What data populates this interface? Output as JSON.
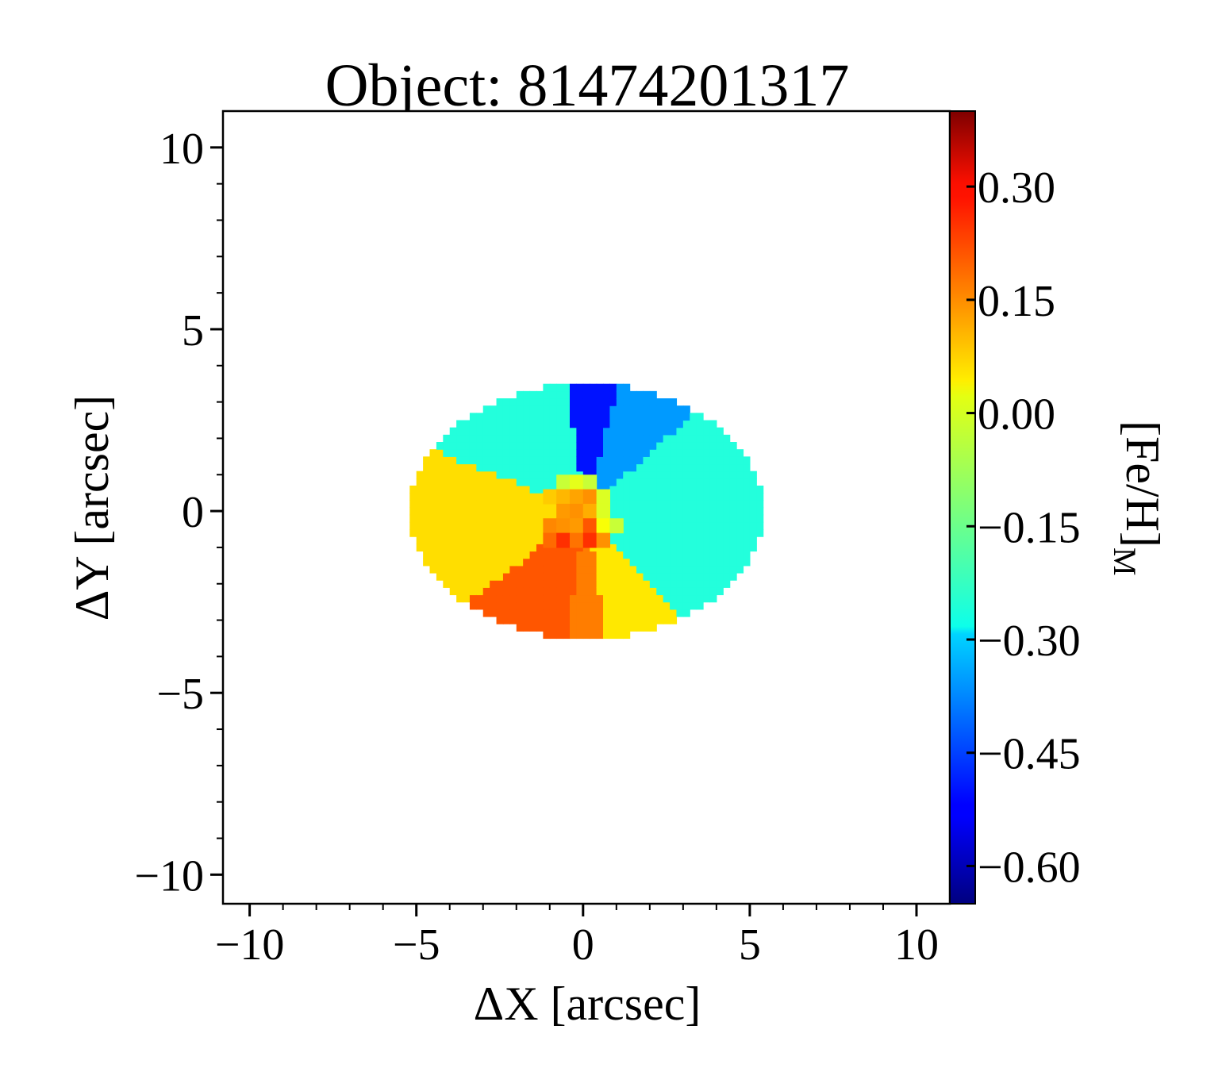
{
  "chart_data": {
    "type": "heatmap",
    "title": "Object: 81474201317",
    "xlabel": "ΔX [arcsec]",
    "ylabel": "ΔY [arcsec]",
    "xlim": [
      -10.8,
      11.0
    ],
    "ylim": [
      -10.8,
      11.0
    ],
    "x_ticks": [
      {
        "value": -10,
        "label": "−10"
      },
      {
        "value": -5,
        "label": "−5"
      },
      {
        "value": 0,
        "label": "0"
      },
      {
        "value": 5,
        "label": "5"
      },
      {
        "value": 10,
        "label": "10"
      }
    ],
    "y_ticks": [
      {
        "value": 10,
        "label": "10"
      },
      {
        "value": 5,
        "label": "5"
      },
      {
        "value": 0,
        "label": "0"
      },
      {
        "value": -5,
        "label": "−5"
      },
      {
        "value": -10,
        "label": "−10"
      }
    ],
    "colorbar": {
      "label": "[Fe/H]",
      "label_subscript": "M",
      "colormap": "jet",
      "range": [
        -0.65,
        0.4
      ],
      "ticks": [
        {
          "value": 0.3,
          "label": "0.30"
        },
        {
          "value": 0.15,
          "label": "0.15"
        },
        {
          "value": 0.0,
          "label": "0.00"
        },
        {
          "value": -0.15,
          "label": "−0.15"
        },
        {
          "value": -0.3,
          "label": "−0.30"
        },
        {
          "value": -0.45,
          "label": "−0.45"
        },
        {
          "value": -0.6,
          "label": "−0.60"
        }
      ]
    },
    "ellipse": {
      "center": [
        0.1,
        0.0
      ],
      "semi_x": 5.3,
      "semi_y": 3.5
    },
    "regions": [
      {
        "name": "top-center",
        "value": -0.5,
        "from_deg": 75,
        "to_deg": 100
      },
      {
        "name": "top-right",
        "value": -0.36,
        "from_deg": 40,
        "to_deg": 75
      },
      {
        "name": "right",
        "value": -0.22,
        "from_deg": -45,
        "to_deg": 40
      },
      {
        "name": "bottom-right",
        "value": 0.03,
        "from_deg": -80,
        "to_deg": -45
      },
      {
        "name": "bottom-center",
        "value": 0.14,
        "from_deg": -100,
        "to_deg": -80
      },
      {
        "name": "bottom-left",
        "value": 0.18,
        "from_deg": -145,
        "to_deg": -100
      },
      {
        "name": "left",
        "value": 0.04,
        "from_deg": 160,
        "to_deg": 215
      },
      {
        "name": "top-left",
        "value": -0.22,
        "from_deg": 100,
        "to_deg": 160
      }
    ],
    "center_cells": [
      {
        "x": -0.6,
        "y": 0.8,
        "value": -0.05
      },
      {
        "x": -0.2,
        "y": 0.8,
        "value": -0.02
      },
      {
        "x": 0.2,
        "y": 0.8,
        "value": -0.05
      },
      {
        "x": -1.0,
        "y": 0.4,
        "value": 0.06
      },
      {
        "x": -0.6,
        "y": 0.4,
        "value": 0.08
      },
      {
        "x": -0.2,
        "y": 0.4,
        "value": 0.1
      },
      {
        "x": 0.2,
        "y": 0.4,
        "value": 0.12
      },
      {
        "x": 0.6,
        "y": 0.4,
        "value": -0.03
      },
      {
        "x": -0.6,
        "y": 0.0,
        "value": 0.11
      },
      {
        "x": -0.2,
        "y": 0.0,
        "value": 0.12
      },
      {
        "x": 0.2,
        "y": 0.0,
        "value": 0.09
      },
      {
        "x": 0.6,
        "y": 0.0,
        "value": -0.03
      },
      {
        "x": -1.0,
        "y": -0.4,
        "value": 0.13
      },
      {
        "x": -0.6,
        "y": -0.4,
        "value": 0.12
      },
      {
        "x": -0.2,
        "y": -0.4,
        "value": 0.11
      },
      {
        "x": 0.2,
        "y": -0.4,
        "value": 0.18
      },
      {
        "x": 0.6,
        "y": -0.4,
        "value": 0.0
      },
      {
        "x": 1.0,
        "y": -0.4,
        "value": -0.05
      },
      {
        "x": -1.0,
        "y": -0.8,
        "value": 0.16
      },
      {
        "x": -0.6,
        "y": -0.8,
        "value": 0.22
      },
      {
        "x": -0.2,
        "y": -0.8,
        "value": 0.15
      },
      {
        "x": 0.2,
        "y": -0.8,
        "value": 0.22
      },
      {
        "x": 0.6,
        "y": -0.8,
        "value": 0.12
      }
    ]
  }
}
